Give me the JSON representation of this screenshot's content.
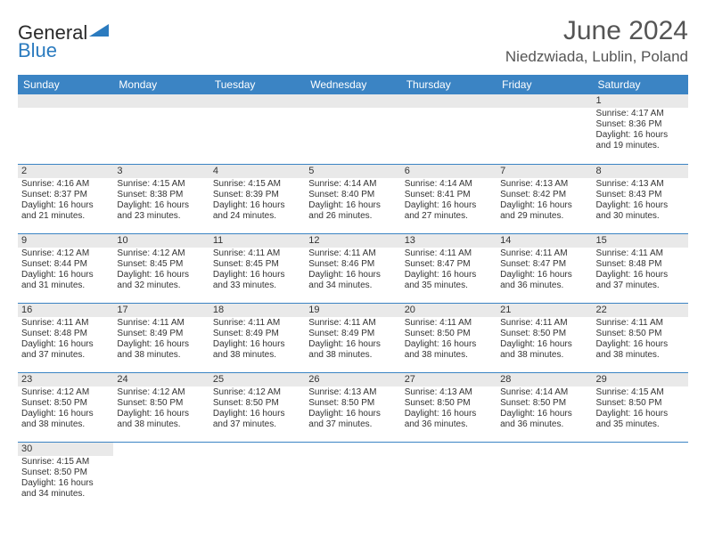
{
  "brand": {
    "part1": "General",
    "part2": "Blue",
    "triangle_color": "#2b7bbf"
  },
  "title": "June 2024",
  "location": "Niedzwiada, Lublin, Poland",
  "colors": {
    "header_bg": "#3b84c4",
    "header_fg": "#ffffff",
    "daybar_bg": "#e9e9e9",
    "border": "#3b84c4",
    "text": "#333333"
  },
  "weekdays": [
    "Sunday",
    "Monday",
    "Tuesday",
    "Wednesday",
    "Thursday",
    "Friday",
    "Saturday"
  ],
  "weeks": [
    [
      null,
      null,
      null,
      null,
      null,
      null,
      {
        "n": "1",
        "sr": "Sunrise: 4:17 AM",
        "ss": "Sunset: 8:36 PM",
        "dl1": "Daylight: 16 hours",
        "dl2": "and 19 minutes."
      }
    ],
    [
      {
        "n": "2",
        "sr": "Sunrise: 4:16 AM",
        "ss": "Sunset: 8:37 PM",
        "dl1": "Daylight: 16 hours",
        "dl2": "and 21 minutes."
      },
      {
        "n": "3",
        "sr": "Sunrise: 4:15 AM",
        "ss": "Sunset: 8:38 PM",
        "dl1": "Daylight: 16 hours",
        "dl2": "and 23 minutes."
      },
      {
        "n": "4",
        "sr": "Sunrise: 4:15 AM",
        "ss": "Sunset: 8:39 PM",
        "dl1": "Daylight: 16 hours",
        "dl2": "and 24 minutes."
      },
      {
        "n": "5",
        "sr": "Sunrise: 4:14 AM",
        "ss": "Sunset: 8:40 PM",
        "dl1": "Daylight: 16 hours",
        "dl2": "and 26 minutes."
      },
      {
        "n": "6",
        "sr": "Sunrise: 4:14 AM",
        "ss": "Sunset: 8:41 PM",
        "dl1": "Daylight: 16 hours",
        "dl2": "and 27 minutes."
      },
      {
        "n": "7",
        "sr": "Sunrise: 4:13 AM",
        "ss": "Sunset: 8:42 PM",
        "dl1": "Daylight: 16 hours",
        "dl2": "and 29 minutes."
      },
      {
        "n": "8",
        "sr": "Sunrise: 4:13 AM",
        "ss": "Sunset: 8:43 PM",
        "dl1": "Daylight: 16 hours",
        "dl2": "and 30 minutes."
      }
    ],
    [
      {
        "n": "9",
        "sr": "Sunrise: 4:12 AM",
        "ss": "Sunset: 8:44 PM",
        "dl1": "Daylight: 16 hours",
        "dl2": "and 31 minutes."
      },
      {
        "n": "10",
        "sr": "Sunrise: 4:12 AM",
        "ss": "Sunset: 8:45 PM",
        "dl1": "Daylight: 16 hours",
        "dl2": "and 32 minutes."
      },
      {
        "n": "11",
        "sr": "Sunrise: 4:11 AM",
        "ss": "Sunset: 8:45 PM",
        "dl1": "Daylight: 16 hours",
        "dl2": "and 33 minutes."
      },
      {
        "n": "12",
        "sr": "Sunrise: 4:11 AM",
        "ss": "Sunset: 8:46 PM",
        "dl1": "Daylight: 16 hours",
        "dl2": "and 34 minutes."
      },
      {
        "n": "13",
        "sr": "Sunrise: 4:11 AM",
        "ss": "Sunset: 8:47 PM",
        "dl1": "Daylight: 16 hours",
        "dl2": "and 35 minutes."
      },
      {
        "n": "14",
        "sr": "Sunrise: 4:11 AM",
        "ss": "Sunset: 8:47 PM",
        "dl1": "Daylight: 16 hours",
        "dl2": "and 36 minutes."
      },
      {
        "n": "15",
        "sr": "Sunrise: 4:11 AM",
        "ss": "Sunset: 8:48 PM",
        "dl1": "Daylight: 16 hours",
        "dl2": "and 37 minutes."
      }
    ],
    [
      {
        "n": "16",
        "sr": "Sunrise: 4:11 AM",
        "ss": "Sunset: 8:48 PM",
        "dl1": "Daylight: 16 hours",
        "dl2": "and 37 minutes."
      },
      {
        "n": "17",
        "sr": "Sunrise: 4:11 AM",
        "ss": "Sunset: 8:49 PM",
        "dl1": "Daylight: 16 hours",
        "dl2": "and 38 minutes."
      },
      {
        "n": "18",
        "sr": "Sunrise: 4:11 AM",
        "ss": "Sunset: 8:49 PM",
        "dl1": "Daylight: 16 hours",
        "dl2": "and 38 minutes."
      },
      {
        "n": "19",
        "sr": "Sunrise: 4:11 AM",
        "ss": "Sunset: 8:49 PM",
        "dl1": "Daylight: 16 hours",
        "dl2": "and 38 minutes."
      },
      {
        "n": "20",
        "sr": "Sunrise: 4:11 AM",
        "ss": "Sunset: 8:50 PM",
        "dl1": "Daylight: 16 hours",
        "dl2": "and 38 minutes."
      },
      {
        "n": "21",
        "sr": "Sunrise: 4:11 AM",
        "ss": "Sunset: 8:50 PM",
        "dl1": "Daylight: 16 hours",
        "dl2": "and 38 minutes."
      },
      {
        "n": "22",
        "sr": "Sunrise: 4:11 AM",
        "ss": "Sunset: 8:50 PM",
        "dl1": "Daylight: 16 hours",
        "dl2": "and 38 minutes."
      }
    ],
    [
      {
        "n": "23",
        "sr": "Sunrise: 4:12 AM",
        "ss": "Sunset: 8:50 PM",
        "dl1": "Daylight: 16 hours",
        "dl2": "and 38 minutes."
      },
      {
        "n": "24",
        "sr": "Sunrise: 4:12 AM",
        "ss": "Sunset: 8:50 PM",
        "dl1": "Daylight: 16 hours",
        "dl2": "and 38 minutes."
      },
      {
        "n": "25",
        "sr": "Sunrise: 4:12 AM",
        "ss": "Sunset: 8:50 PM",
        "dl1": "Daylight: 16 hours",
        "dl2": "and 37 minutes."
      },
      {
        "n": "26",
        "sr": "Sunrise: 4:13 AM",
        "ss": "Sunset: 8:50 PM",
        "dl1": "Daylight: 16 hours",
        "dl2": "and 37 minutes."
      },
      {
        "n": "27",
        "sr": "Sunrise: 4:13 AM",
        "ss": "Sunset: 8:50 PM",
        "dl1": "Daylight: 16 hours",
        "dl2": "and 36 minutes."
      },
      {
        "n": "28",
        "sr": "Sunrise: 4:14 AM",
        "ss": "Sunset: 8:50 PM",
        "dl1": "Daylight: 16 hours",
        "dl2": "and 36 minutes."
      },
      {
        "n": "29",
        "sr": "Sunrise: 4:15 AM",
        "ss": "Sunset: 8:50 PM",
        "dl1": "Daylight: 16 hours",
        "dl2": "and 35 minutes."
      }
    ],
    [
      {
        "n": "30",
        "sr": "Sunrise: 4:15 AM",
        "ss": "Sunset: 8:50 PM",
        "dl1": "Daylight: 16 hours",
        "dl2": "and 34 minutes."
      },
      null,
      null,
      null,
      null,
      null,
      null
    ]
  ]
}
